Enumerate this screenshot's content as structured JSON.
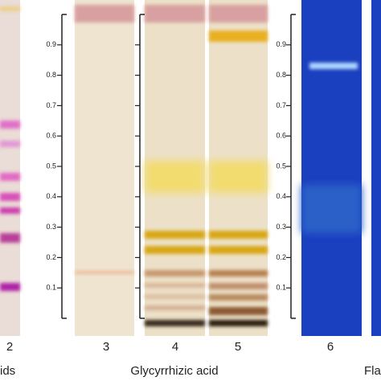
{
  "scale": {
    "ticks": [
      "0.1",
      "0.2",
      "0.3",
      "0.4",
      "0.5",
      "0.6",
      "0.7",
      "0.8",
      "0.9"
    ]
  },
  "lanes": [
    "2",
    "3",
    "4",
    "5",
    "6"
  ],
  "captions": [
    "ids",
    "Glycyrrhizic acid",
    "Fla"
  ]
}
